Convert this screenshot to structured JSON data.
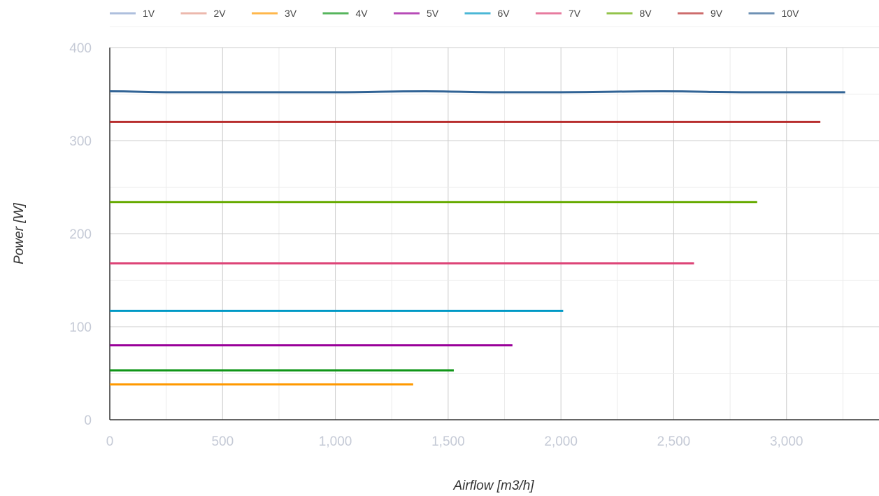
{
  "chart_data": {
    "type": "line",
    "xlabel": "Airflow [m3/h]",
    "ylabel": "Power [W]",
    "xlim": [
      0,
      3400
    ],
    "ylim": [
      0,
      400
    ],
    "x_ticks": [
      "0",
      "500",
      "1,000",
      "1,500",
      "2,000",
      "2,500",
      "3,000"
    ],
    "x_tick_values": [
      0,
      500,
      1000,
      1500,
      2000,
      2500,
      3000
    ],
    "y_ticks": [
      "0",
      "100",
      "200",
      "300",
      "400"
    ],
    "y_tick_values": [
      0,
      100,
      200,
      300,
      400
    ],
    "grid": true,
    "legend_position": "top",
    "series": [
      {
        "name": "1V",
        "color": "#8da4cf",
        "x": [],
        "y": []
      },
      {
        "name": "2V",
        "color": "#e59b8b",
        "x": [],
        "y": []
      },
      {
        "name": "3V",
        "color": "#ff9900",
        "x": [
          0,
          1345
        ],
        "y": [
          38,
          38
        ]
      },
      {
        "name": "4V",
        "color": "#109618",
        "x": [
          0,
          1525
        ],
        "y": [
          53,
          53
        ]
      },
      {
        "name": "5V",
        "color": "#990099",
        "x": [
          0,
          1785
        ],
        "y": [
          80,
          80
        ]
      },
      {
        "name": "6V",
        "color": "#0099c6",
        "x": [
          0,
          2010
        ],
        "y": [
          117,
          117
        ]
      },
      {
        "name": "7V",
        "color": "#dd4477",
        "x": [
          0,
          2590
        ],
        "y": [
          168,
          168
        ]
      },
      {
        "name": "8V",
        "color": "#66aa00",
        "x": [
          0,
          2870
        ],
        "y": [
          234,
          234
        ]
      },
      {
        "name": "9V",
        "color": "#b82e2e",
        "x": [
          0,
          3150
        ],
        "y": [
          320,
          320
        ]
      },
      {
        "name": "10V",
        "color": "#316395",
        "x": [
          0,
          250,
          500,
          1000,
          1400,
          1700,
          2000,
          2450,
          2800,
          3000,
          3260
        ],
        "y": [
          353,
          352,
          352,
          352,
          353,
          352,
          352,
          353,
          352,
          352,
          352
        ]
      }
    ]
  }
}
